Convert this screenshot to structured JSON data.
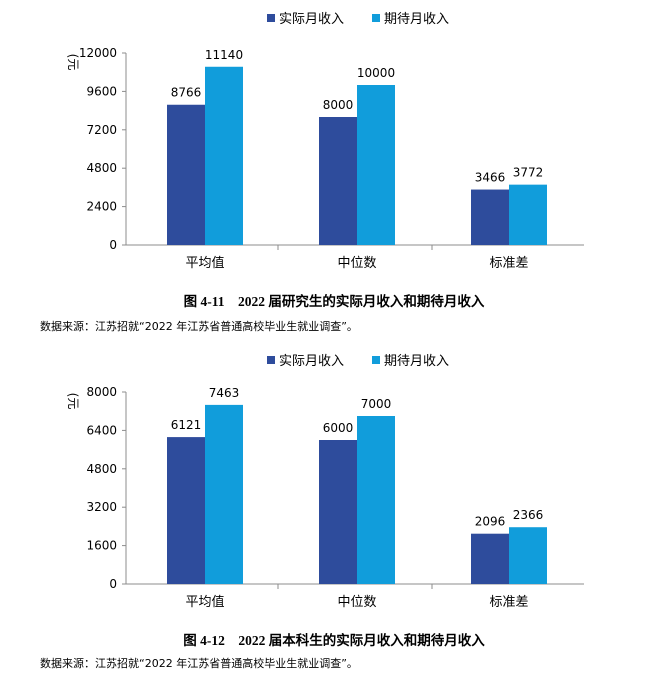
{
  "colors": {
    "actual": "#2E4C9C",
    "expected": "#119DDB",
    "axis": "#8C8C8C"
  },
  "chart_data": [
    {
      "type": "bar",
      "categories": [
        "平均值",
        "中位数",
        "标准差"
      ],
      "series": [
        {
          "name": "实际月收入",
          "values": [
            8766,
            8000,
            3466
          ]
        },
        {
          "name": "期待月收入",
          "values": [
            11140,
            10000,
            3772
          ]
        }
      ],
      "yticks": [
        "0",
        "2400",
        "4800",
        "7200",
        "9600",
        "12000"
      ],
      "ylim": [
        0,
        12000
      ],
      "ylabel": "(元",
      "legend": "top",
      "grid": false,
      "caption": "图 4-11    2022 届研究生的实际月收入和期待月收入",
      "source": "数据来源：江苏招就“2022 年江苏省普通高校毕业生就业调查”。"
    },
    {
      "type": "bar",
      "categories": [
        "平均值",
        "中位数",
        "标准差"
      ],
      "series": [
        {
          "name": "实际月收入",
          "values": [
            6121,
            6000,
            2096
          ]
        },
        {
          "name": "期待月收入",
          "values": [
            7463,
            7000,
            2366
          ]
        }
      ],
      "yticks": [
        "0",
        "1600",
        "3200",
        "4800",
        "6400",
        "8000"
      ],
      "ylim": [
        0,
        8000
      ],
      "ylabel": "(元",
      "legend": "top",
      "grid": false,
      "caption": "图 4-12    2022 届本科生的实际月收入和期待月收入",
      "source": "数据来源：江苏招就“2022 年江苏省普通高校毕业生就业调查”。"
    }
  ]
}
